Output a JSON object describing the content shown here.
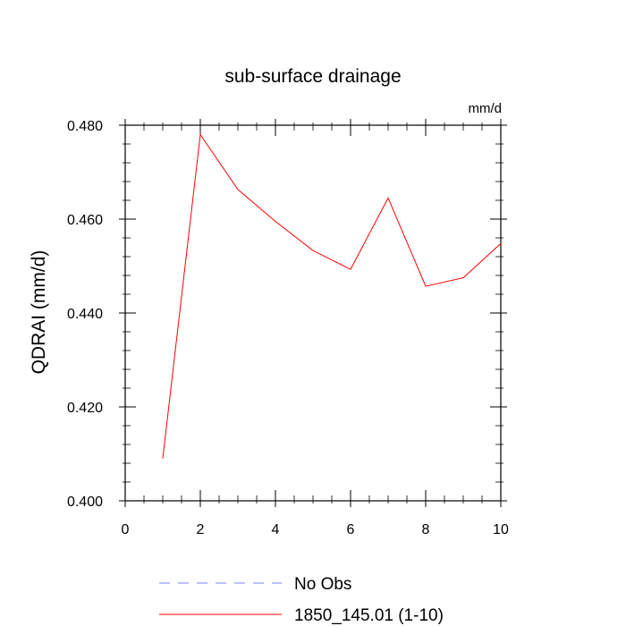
{
  "chart_data": {
    "type": "line",
    "title": "sub-surface drainage",
    "units_label": "mm/d",
    "xlabel": "",
    "ylabel": "QDRAI  (mm/d)",
    "xlim": [
      0,
      10
    ],
    "ylim": [
      0.4,
      0.48
    ],
    "x_ticks": [
      "0",
      "2",
      "4",
      "6",
      "8",
      "10"
    ],
    "y_ticks": [
      "0.400",
      "0.420",
      "0.440",
      "0.460",
      "0.480"
    ],
    "grid": false,
    "legend_position": "bottom",
    "legend": [
      {
        "label": "No Obs",
        "color": "#8080ff",
        "style": "dashed"
      },
      {
        "label": "1850_145.01 (1-10)",
        "color": "#ff0000",
        "style": "solid"
      }
    ],
    "series": [
      {
        "name": "1850_145.01 (1-10)",
        "color": "#ff0000",
        "x": [
          1,
          2,
          3,
          4,
          5,
          6,
          7,
          8,
          9,
          10
        ],
        "values": [
          0.409,
          0.478,
          0.4663,
          0.4595,
          0.4533,
          0.4493,
          0.4645,
          0.4457,
          0.4475,
          0.4548
        ]
      }
    ]
  }
}
